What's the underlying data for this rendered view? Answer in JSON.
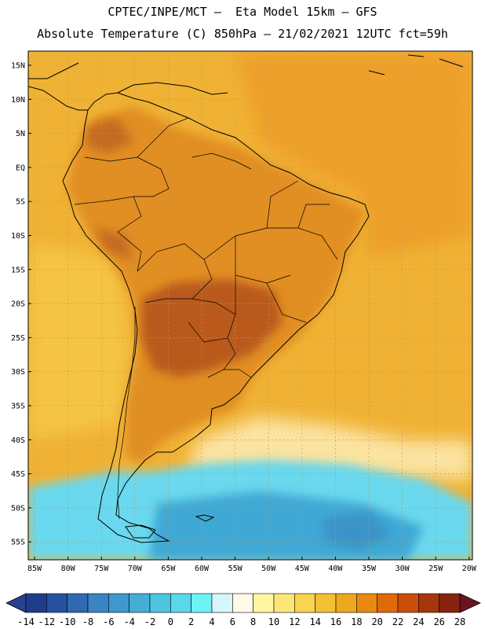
{
  "header": {
    "title_line1": "CPTEC/INPE/MCT –  Eta Model 15km – GFS",
    "title_line2": "Absolute Temperature (C) 850hPa – 21/02/2021 12UTC fct=59h"
  },
  "axes": {
    "lat_labels": [
      "15N",
      "10N",
      "5N",
      "EQ",
      "5S",
      "10S",
      "15S",
      "20S",
      "25S",
      "30S",
      "35S",
      "40S",
      "45S",
      "50S",
      "55S"
    ],
    "lon_labels": [
      "85W",
      "80W",
      "75W",
      "70W",
      "65W",
      "60W",
      "55W",
      "50W",
      "45W",
      "40W",
      "35W",
      "30W",
      "25W",
      "20W"
    ]
  },
  "colorbar": {
    "labels": [
      "-14",
      "-12",
      "-10",
      "-8",
      "-6",
      "-4",
      "-2",
      "0",
      "2",
      "4",
      "6",
      "8",
      "10",
      "12",
      "14",
      "16",
      "18",
      "20",
      "22",
      "24",
      "26",
      "28"
    ],
    "colors": [
      "#1f3c8c",
      "#27519e",
      "#2f69b2",
      "#3a84c4",
      "#3f98cc",
      "#45aed6",
      "#4dc4e0",
      "#5ad8ea",
      "#6ef2f6",
      "#d6f6fc",
      "#fffbe6",
      "#fff6a0",
      "#fce678",
      "#f8d452",
      "#f2c034",
      "#eea81e",
      "#e88a12",
      "#de6a0a",
      "#c84e0a",
      "#a6360c",
      "#862410"
    ],
    "under_color": "#2a3f8f",
    "over_color": "#6a1422"
  },
  "colors": {
    "field_base": "#f0b234",
    "warm_land": "#e08c22",
    "hot_core": "#b8561c",
    "cool_ocean": "#fbe6a2",
    "cold_ocean": "#5ad4ea",
    "coldest": "#3aa0cc"
  }
}
